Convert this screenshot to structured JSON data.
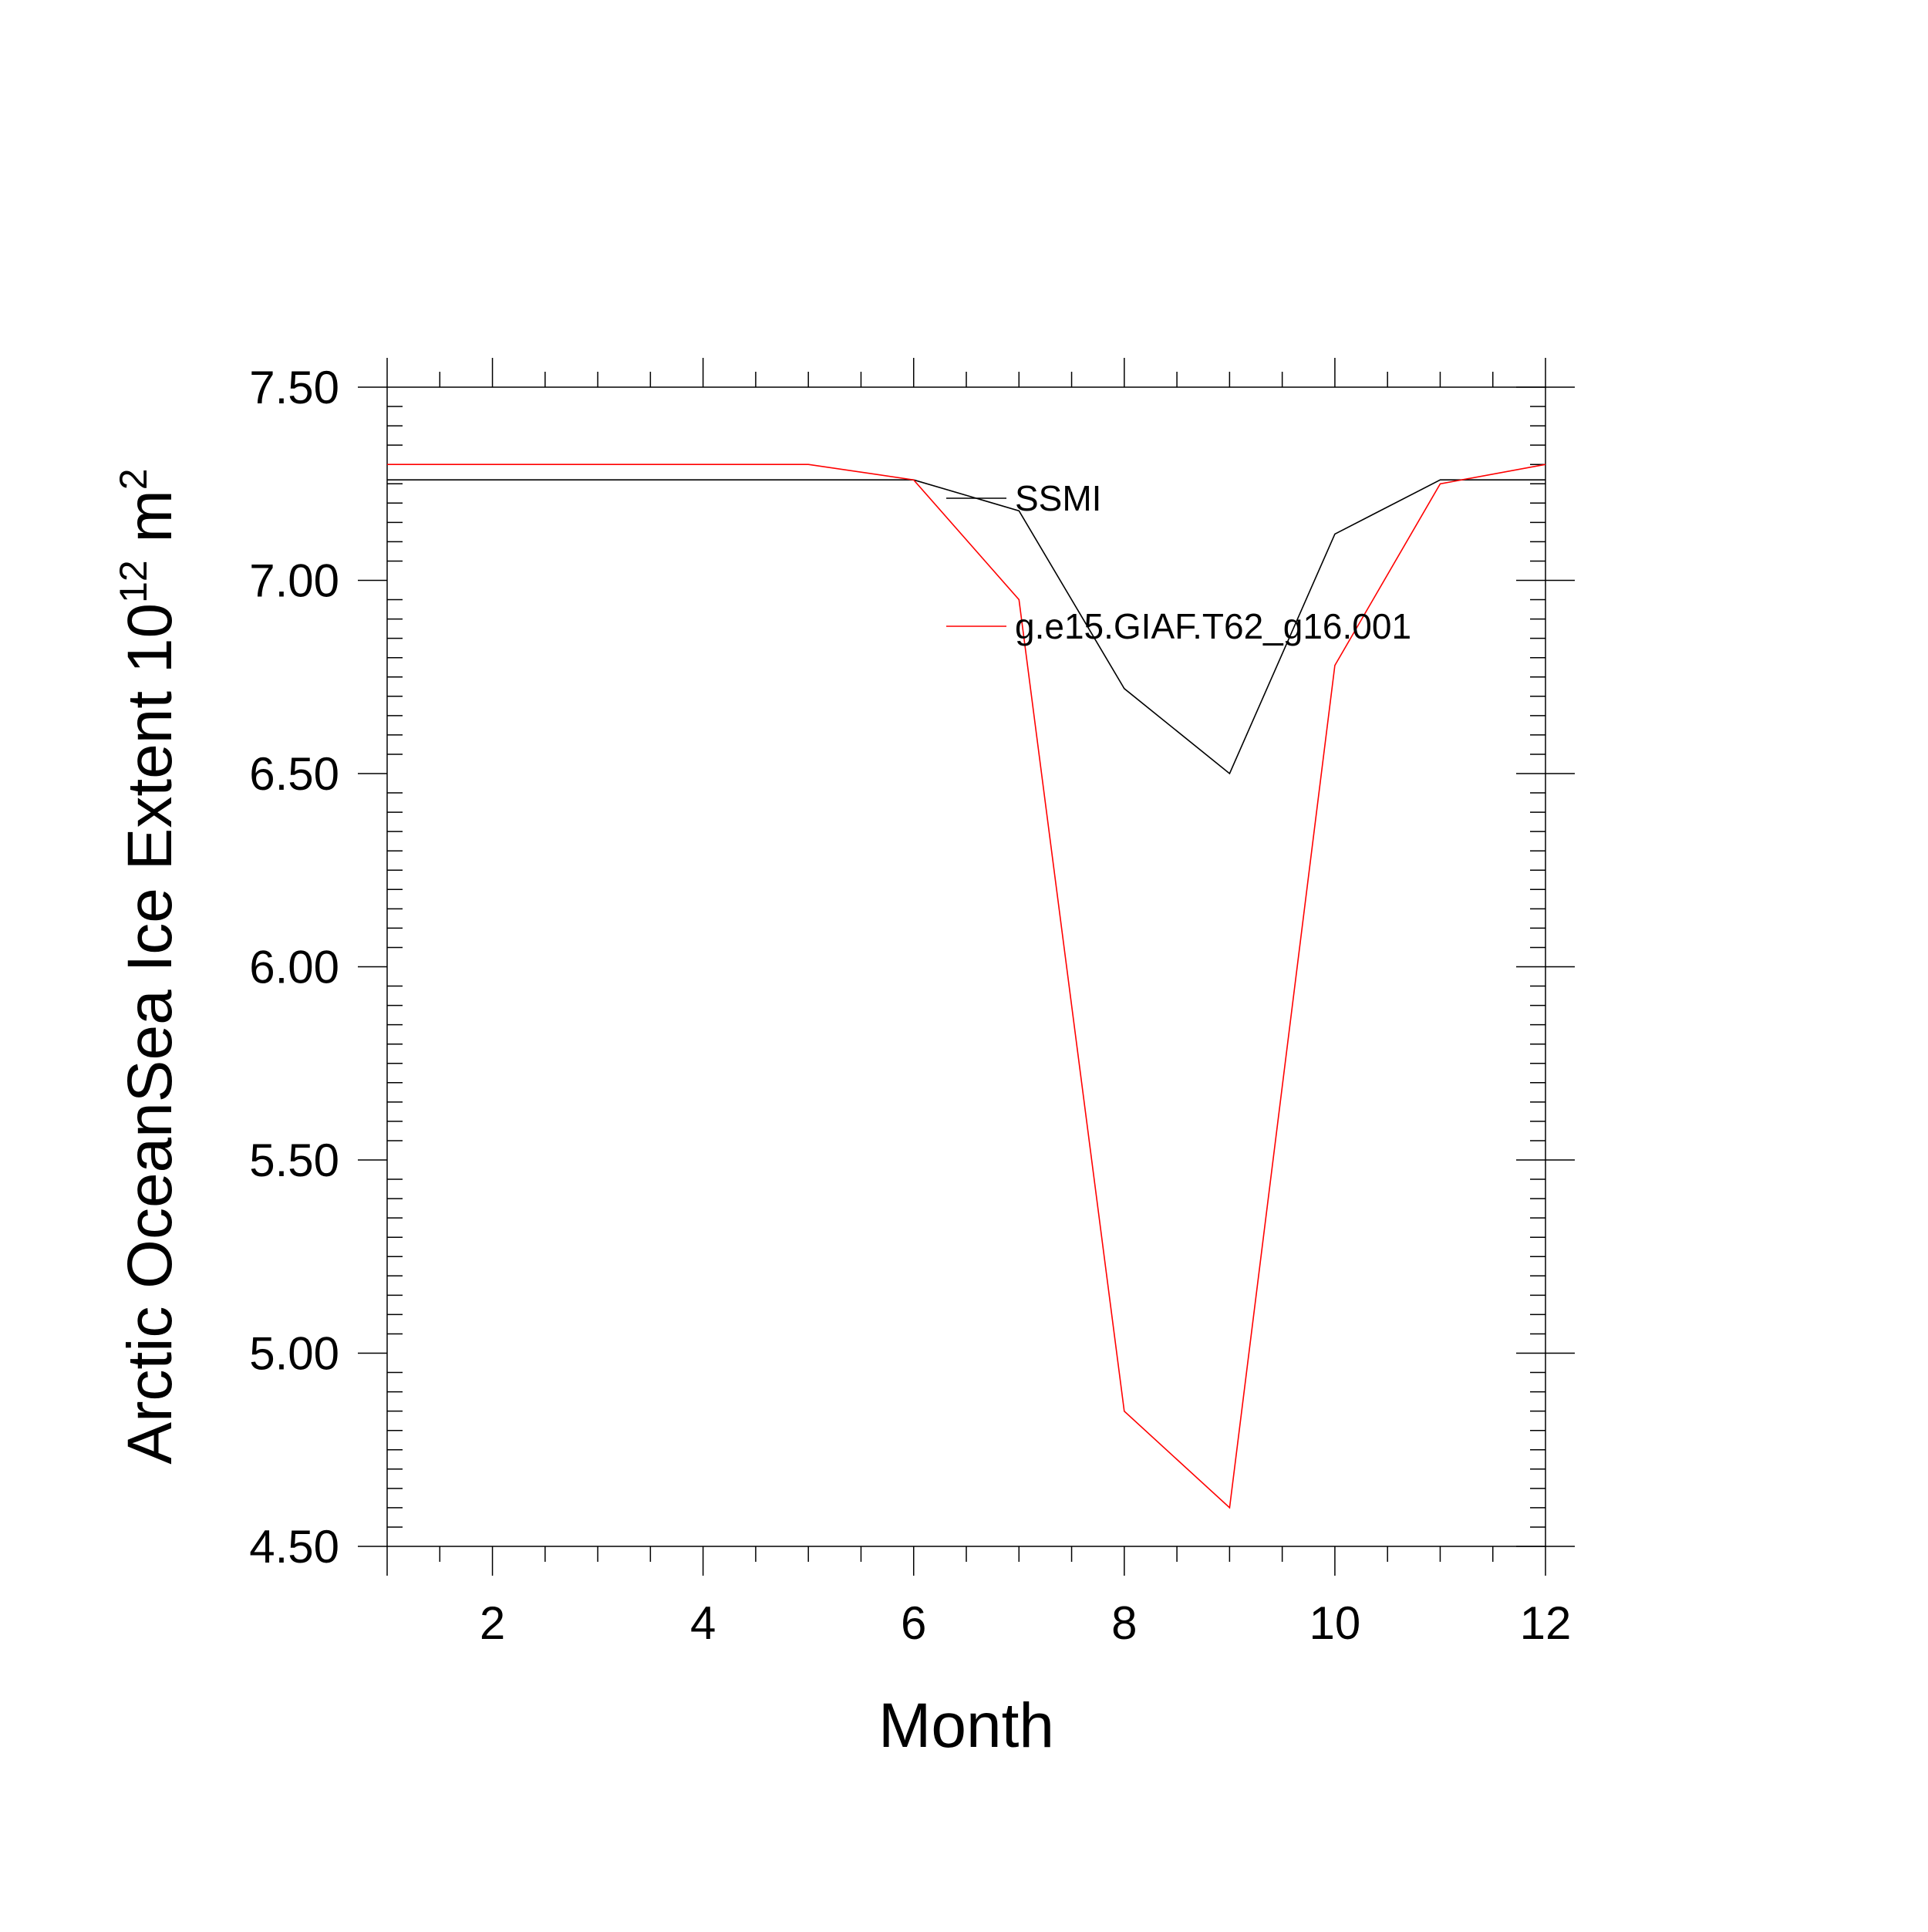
{
  "chart_data": {
    "type": "line",
    "xlabel": "Month",
    "ylabel": {
      "base": "Arctic OceanSea Ice Extent 10",
      "sup1": "12",
      "unit": " m",
      "sup2": "2"
    },
    "xlim": [
      1,
      12
    ],
    "ylim": [
      4.5,
      7.5
    ],
    "x_ticks": [
      2,
      4,
      6,
      8,
      10,
      12
    ],
    "x_tick_labels": [
      "2",
      "4",
      "6",
      "8",
      "10",
      "12"
    ],
    "y_ticks": [
      4.5,
      5.0,
      5.5,
      6.0,
      6.5,
      7.0,
      7.5
    ],
    "y_tick_labels": [
      "4.50",
      "5.00",
      "5.50",
      "6.00",
      "6.50",
      "7.00",
      "7.50"
    ],
    "x": [
      1,
      2,
      3,
      4,
      5,
      6,
      7,
      8,
      9,
      10,
      11,
      12
    ],
    "series": [
      {
        "name": "SSMI",
        "color": "#000000",
        "values": [
          7.26,
          7.26,
          7.26,
          7.26,
          7.26,
          7.26,
          7.18,
          6.72,
          6.5,
          7.12,
          7.26,
          7.26
        ]
      },
      {
        "name": "g.e15.GIAF.T62_g16.001",
        "color": "#ff0000",
        "values": [
          7.3,
          7.3,
          7.3,
          7.3,
          7.3,
          7.26,
          6.95,
          4.85,
          4.6,
          6.78,
          7.25,
          7.3
        ]
      }
    ],
    "grid": false,
    "legend_position": "top-right"
  }
}
